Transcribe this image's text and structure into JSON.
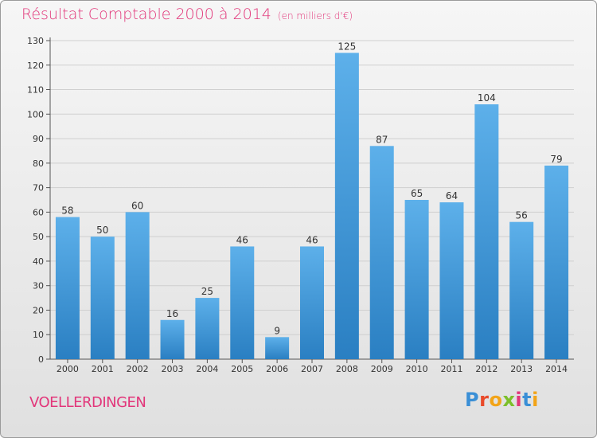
{
  "header": {
    "title": "Résultat Comptable 2000 à 2014",
    "subtitle": "(en milliers d'€)"
  },
  "footer": {
    "commune": "VOELLERDINGEN",
    "logo_letters": [
      "P",
      "r",
      "o",
      "x",
      "i",
      "t",
      "i"
    ],
    "logo_colors": [
      "#3a8fd6",
      "#e94a2a",
      "#f2a418",
      "#7cbf2a",
      "#e2367a",
      "#3a8fd6",
      "#f2a418"
    ]
  },
  "colors": {
    "bar_light": "#5db0ea",
    "bar_dark": "#2a7fc2",
    "title": "#e2367a"
  },
  "chart_data": {
    "type": "bar",
    "categories": [
      "2000",
      "2001",
      "2002",
      "2003",
      "2004",
      "2005",
      "2006",
      "2007",
      "2008",
      "2009",
      "2010",
      "2011",
      "2012",
      "2013",
      "2014"
    ],
    "values": [
      58,
      50,
      60,
      16,
      25,
      46,
      9,
      46,
      125,
      87,
      65,
      64,
      104,
      56,
      79
    ],
    "ylim": [
      0,
      130
    ],
    "yticks": [
      0,
      10,
      20,
      30,
      40,
      50,
      60,
      70,
      80,
      90,
      100,
      110,
      120,
      130
    ],
    "grid": true
  }
}
